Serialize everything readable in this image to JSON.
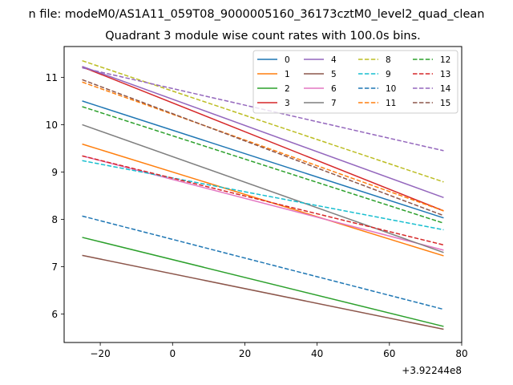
{
  "chart_data": {
    "type": "line",
    "suptitle": "n file: modeM0/AS1A11_059T08_9000005160_36173cztM0_level2_quad_clean",
    "title": "Quadrant 3 module wise count rates with 100.0s bins.",
    "xlabel": "",
    "ylabel": "",
    "x_offset_label": "+3.92244e8",
    "xlim": [
      -30,
      80
    ],
    "ylim": [
      5.4,
      11.65
    ],
    "xticks": [
      -20,
      0,
      20,
      40,
      60,
      80
    ],
    "yticks": [
      6,
      7,
      8,
      9,
      10,
      11
    ],
    "xtick_labels": [
      "−20",
      "0",
      "20",
      "40",
      "60",
      "80"
    ],
    "ytick_labels": [
      "6",
      "7",
      "8",
      "9",
      "10",
      "11"
    ],
    "grid": false,
    "legend_position": "top-right",
    "legend_columns": 4,
    "x": [
      -25,
      75
    ],
    "series": [
      {
        "name": "0",
        "color": "#1f77b4",
        "dash": "solid",
        "values": [
          10.5,
          8.03
        ]
      },
      {
        "name": "1",
        "color": "#ff7f0e",
        "dash": "solid",
        "values": [
          9.59,
          7.23
        ]
      },
      {
        "name": "2",
        "color": "#2ca02c",
        "dash": "solid",
        "values": [
          7.62,
          5.74
        ]
      },
      {
        "name": "3",
        "color": "#d62728",
        "dash": "solid",
        "values": [
          11.22,
          8.18
        ]
      },
      {
        "name": "4",
        "color": "#9467bd",
        "dash": "solid",
        "values": [
          11.23,
          8.46
        ]
      },
      {
        "name": "5",
        "color": "#8c564b",
        "dash": "solid",
        "values": [
          7.24,
          5.68
        ]
      },
      {
        "name": "6",
        "color": "#e377c2",
        "dash": "solid",
        "values": [
          9.34,
          7.35
        ]
      },
      {
        "name": "7",
        "color": "#7f7f7f",
        "dash": "solid",
        "values": [
          10.0,
          7.3
        ]
      },
      {
        "name": "8",
        "color": "#bcbd22",
        "dash": "dashed",
        "values": [
          11.35,
          8.79
        ]
      },
      {
        "name": "9",
        "color": "#17becf",
        "dash": "dashed",
        "values": [
          9.24,
          7.78
        ]
      },
      {
        "name": "10",
        "color": "#1f77b4",
        "dash": "dashed",
        "values": [
          8.07,
          6.1
        ]
      },
      {
        "name": "11",
        "color": "#ff7f0e",
        "dash": "dashed",
        "values": [
          10.9,
          8.18
        ]
      },
      {
        "name": "12",
        "color": "#2ca02c",
        "dash": "dashed",
        "values": [
          10.38,
          7.92
        ]
      },
      {
        "name": "13",
        "color": "#d62728",
        "dash": "dashed",
        "values": [
          9.34,
          7.46
        ]
      },
      {
        "name": "14",
        "color": "#9467bd",
        "dash": "dashed",
        "values": [
          11.2,
          9.45
        ]
      },
      {
        "name": "15",
        "color": "#8c564b",
        "dash": "dashed",
        "values": [
          10.95,
          8.08
        ]
      }
    ]
  }
}
